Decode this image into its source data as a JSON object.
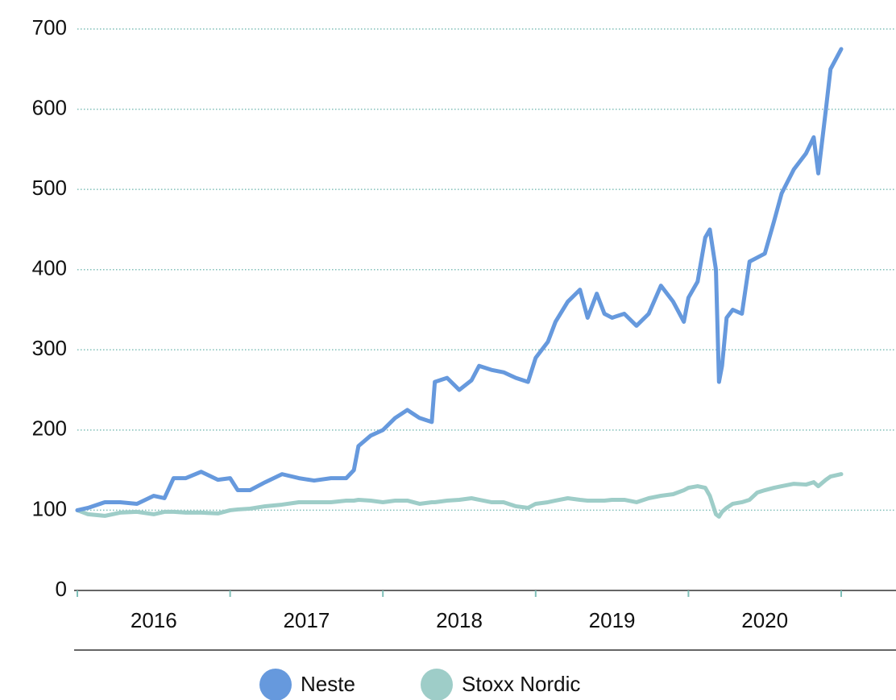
{
  "chart_data": {
    "type": "line",
    "x": [
      2016.0,
      2016.07,
      2016.18,
      2016.28,
      2016.39,
      2016.5,
      2016.57,
      2016.63,
      2016.71,
      2016.81,
      2016.92,
      2017.0,
      2017.05,
      2017.13,
      2017.23,
      2017.34,
      2017.45,
      2017.55,
      2017.66,
      2017.76,
      2017.81,
      2017.84,
      2017.92,
      2018.0,
      2018.08,
      2018.16,
      2018.24,
      2018.32,
      2018.34,
      2018.42,
      2018.5,
      2018.58,
      2018.63,
      2018.71,
      2018.79,
      2018.87,
      2018.95,
      2019.0,
      2019.08,
      2019.13,
      2019.21,
      2019.29,
      2019.34,
      2019.4,
      2019.45,
      2019.5,
      2019.58,
      2019.66,
      2019.74,
      2019.82,
      2019.9,
      2019.97,
      2020.0,
      2020.06,
      2020.11,
      2020.14,
      2020.18,
      2020.2,
      2020.22,
      2020.25,
      2020.29,
      2020.35,
      2020.4,
      2020.45,
      2020.5,
      2020.56,
      2020.61,
      2020.69,
      2020.77,
      2020.82,
      2020.85,
      2020.9,
      2020.93,
      2021.0
    ],
    "categories": [
      "2016",
      "2017",
      "2018",
      "2019",
      "2020"
    ],
    "series": [
      {
        "name": "Neste",
        "color": "#6699dd",
        "values": [
          100,
          103,
          110,
          110,
          108,
          118,
          115,
          140,
          140,
          148,
          138,
          140,
          125,
          125,
          135,
          145,
          140,
          137,
          140,
          140,
          150,
          180,
          193,
          200,
          215,
          225,
          215,
          210,
          260,
          265,
          250,
          262,
          280,
          275,
          272,
          265,
          260,
          290,
          310,
          335,
          360,
          375,
          340,
          370,
          345,
          340,
          345,
          330,
          345,
          380,
          360,
          335,
          365,
          385,
          440,
          450,
          400,
          260,
          280,
          340,
          350,
          345,
          410,
          415,
          420,
          460,
          495,
          525,
          545,
          565,
          520,
          600,
          650,
          675
        ]
      },
      {
        "name": "Stoxx Nordic",
        "color": "#9ecdc8",
        "values": [
          100,
          95,
          93,
          97,
          98,
          95,
          98,
          98,
          97,
          97,
          96,
          100,
          101,
          102,
          105,
          107,
          110,
          110,
          110,
          112,
          112,
          113,
          112,
          110,
          112,
          112,
          108,
          110,
          110,
          112,
          113,
          115,
          113,
          110,
          110,
          105,
          103,
          108,
          110,
          112,
          115,
          113,
          112,
          112,
          112,
          113,
          113,
          110,
          115,
          118,
          120,
          125,
          128,
          130,
          128,
          118,
          95,
          92,
          98,
          103,
          108,
          110,
          113,
          122,
          125,
          128,
          130,
          133,
          132,
          135,
          130,
          138,
          142,
          145
        ]
      }
    ],
    "xlim": [
      2016,
      2021
    ],
    "xticks": [
      2016,
      2017,
      2018,
      2019,
      2020,
      2021
    ],
    "ylim": [
      0,
      700
    ],
    "yticks": [
      0,
      100,
      200,
      300,
      400,
      500,
      600,
      700
    ],
    "grid": true,
    "legend": "bottom"
  }
}
